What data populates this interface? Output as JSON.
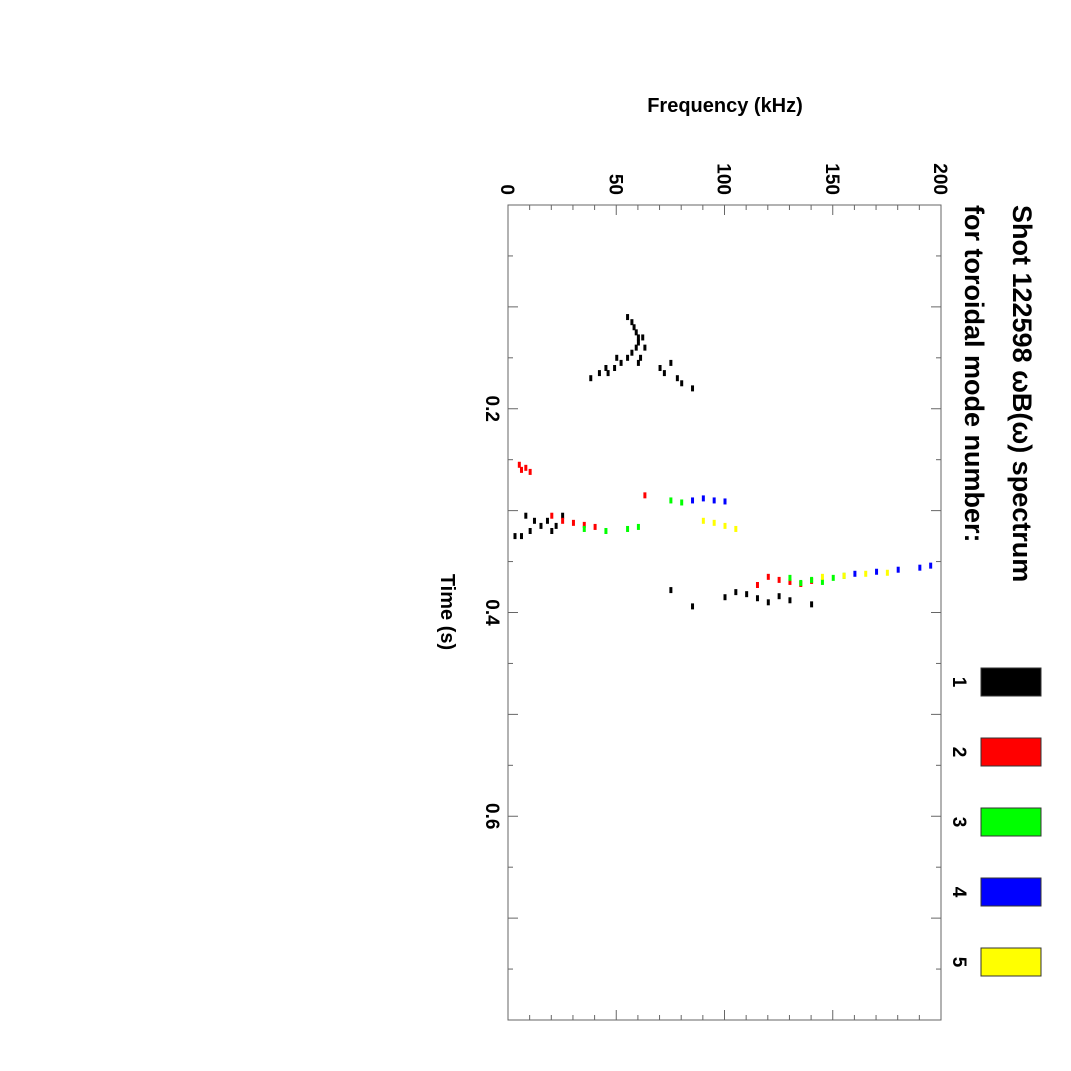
{
  "chart_data": {
    "type": "scatter",
    "orientation": "rotated-90-clockwise",
    "title_line1": "Shot 122598 ωB(ω) spectrum",
    "title_line2": "for toroidal mode number:",
    "xlabel": "Time (s)",
    "ylabel": "Frequency (kHz)",
    "xlim": [
      0.0,
      0.8
    ],
    "ylim": [
      0,
      200
    ],
    "x_ticks": [
      "0.2",
      "0.4",
      "0.6"
    ],
    "x_tick_values": [
      0.2,
      0.4,
      0.6
    ],
    "y_ticks": [
      "0",
      "50",
      "100",
      "150",
      "200"
    ],
    "y_tick_values": [
      0,
      50,
      100,
      150,
      200
    ],
    "grid": false,
    "legend_position": "top-right",
    "series": [
      {
        "name": "1",
        "color": "#000000",
        "points": [
          [
            0.11,
            55
          ],
          [
            0.115,
            57
          ],
          [
            0.12,
            58
          ],
          [
            0.125,
            59
          ],
          [
            0.13,
            60
          ],
          [
            0.135,
            60
          ],
          [
            0.14,
            59
          ],
          [
            0.145,
            57
          ],
          [
            0.15,
            55
          ],
          [
            0.155,
            52
          ],
          [
            0.16,
            49
          ],
          [
            0.165,
            46
          ],
          [
            0.13,
            62
          ],
          [
            0.14,
            63
          ],
          [
            0.15,
            61
          ],
          [
            0.155,
            60
          ],
          [
            0.165,
            42
          ],
          [
            0.17,
            38
          ],
          [
            0.16,
            45
          ],
          [
            0.15,
            50
          ],
          [
            0.155,
            75
          ],
          [
            0.16,
            70
          ],
          [
            0.165,
            72
          ],
          [
            0.17,
            78
          ],
          [
            0.175,
            80
          ],
          [
            0.18,
            85
          ],
          [
            0.305,
            8
          ],
          [
            0.31,
            12
          ],
          [
            0.315,
            15
          ],
          [
            0.32,
            10
          ],
          [
            0.325,
            6
          ],
          [
            0.31,
            18
          ],
          [
            0.315,
            22
          ],
          [
            0.32,
            20
          ],
          [
            0.305,
            25
          ],
          [
            0.325,
            3
          ],
          [
            0.378,
            75
          ],
          [
            0.385,
            100
          ],
          [
            0.38,
            105
          ],
          [
            0.382,
            110
          ],
          [
            0.386,
            115
          ],
          [
            0.39,
            120
          ],
          [
            0.384,
            125
          ],
          [
            0.388,
            130
          ],
          [
            0.392,
            140
          ],
          [
            0.394,
            85
          ]
        ]
      },
      {
        "name": "2",
        "color": "#ff0000",
        "points": [
          [
            0.255,
            5
          ],
          [
            0.258,
            8
          ],
          [
            0.262,
            10
          ],
          [
            0.26,
            6
          ],
          [
            0.285,
            63
          ],
          [
            0.305,
            20
          ],
          [
            0.31,
            25
          ],
          [
            0.312,
            30
          ],
          [
            0.314,
            35
          ],
          [
            0.316,
            40
          ],
          [
            0.365,
            120
          ],
          [
            0.368,
            125
          ],
          [
            0.37,
            130
          ],
          [
            0.372,
            135
          ],
          [
            0.369,
            140
          ],
          [
            0.373,
            115
          ]
        ]
      },
      {
        "name": "3",
        "color": "#00ff00",
        "points": [
          [
            0.29,
            75
          ],
          [
            0.292,
            80
          ],
          [
            0.318,
            35
          ],
          [
            0.32,
            45
          ],
          [
            0.318,
            55
          ],
          [
            0.316,
            60
          ],
          [
            0.366,
            130
          ],
          [
            0.368,
            140
          ],
          [
            0.37,
            145
          ],
          [
            0.366,
            150
          ],
          [
            0.364,
            155
          ],
          [
            0.371,
            135
          ]
        ]
      },
      {
        "name": "4",
        "color": "#0000ff",
        "points": [
          [
            0.29,
            85
          ],
          [
            0.288,
            90
          ],
          [
            0.29,
            95
          ],
          [
            0.291,
            100
          ],
          [
            0.362,
            160
          ],
          [
            0.36,
            170
          ],
          [
            0.358,
            180
          ],
          [
            0.356,
            190
          ],
          [
            0.354,
            195
          ]
        ]
      },
      {
        "name": "5",
        "color": "#ffff00",
        "points": [
          [
            0.31,
            90
          ],
          [
            0.312,
            95
          ],
          [
            0.315,
            100
          ],
          [
            0.318,
            105
          ],
          [
            0.365,
            145
          ],
          [
            0.364,
            155
          ],
          [
            0.362,
            165
          ],
          [
            0.361,
            175
          ]
        ]
      }
    ],
    "legend": [
      {
        "label": "1",
        "color": "#000000"
      },
      {
        "label": "2",
        "color": "#ff0000"
      },
      {
        "label": "3",
        "color": "#00ff00"
      },
      {
        "label": "4",
        "color": "#0000ff"
      },
      {
        "label": "5",
        "color": "#ffff00"
      }
    ]
  }
}
